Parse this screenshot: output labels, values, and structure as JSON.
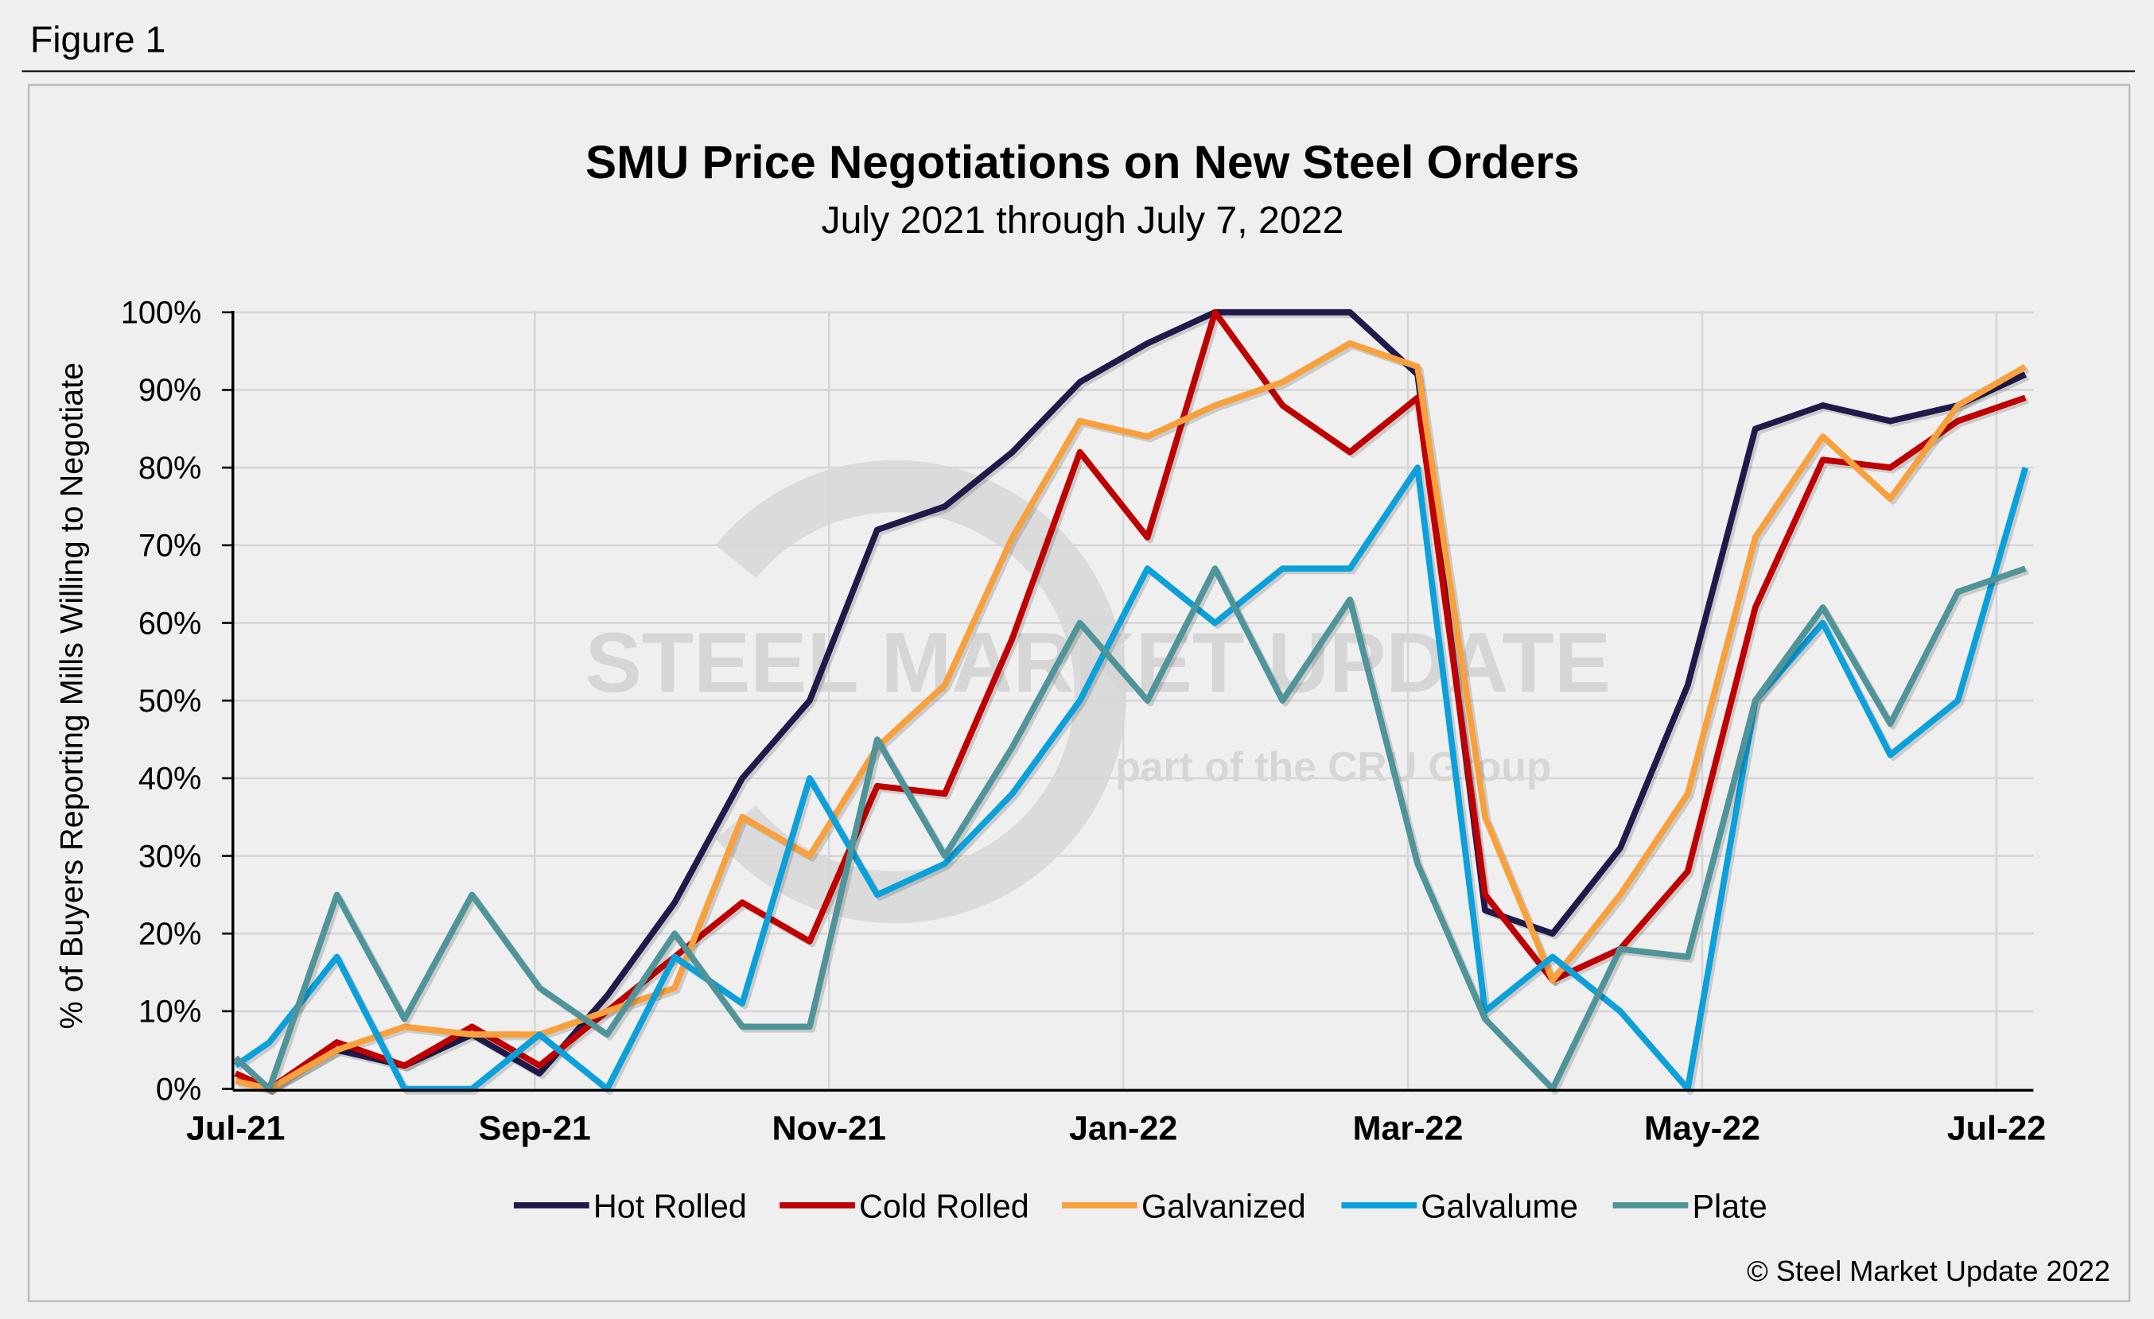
{
  "figure_label": "Figure 1",
  "copyright": "© Steel Market Update 2022",
  "watermark": {
    "brand": "STEEL MARKET UPDATE",
    "tagline": "part of the CRU Group"
  },
  "chart_data": {
    "type": "line",
    "title": "SMU Price Negotiations on New Steel Orders",
    "subtitle": "July 2021 through July 7, 2022",
    "ylabel": "% of Buyers Reporting Mills Willing to Negotiate",
    "xlabel": "",
    "ylim": [
      0,
      100
    ],
    "yticks": [
      "0%",
      "10%",
      "20%",
      "30%",
      "40%",
      "50%",
      "60%",
      "70%",
      "80%",
      "90%",
      "100%"
    ],
    "xlim": [
      "2021-07-01",
      "2022-07-10"
    ],
    "xticks": [
      {
        "date": "2021-07-01",
        "label": "Jul-21"
      },
      {
        "date": "2021-09-01",
        "label": "Sep-21"
      },
      {
        "date": "2021-11-01",
        "label": "Nov-21"
      },
      {
        "date": "2022-01-01",
        "label": "Jan-22"
      },
      {
        "date": "2022-03-01",
        "label": "Mar-22"
      },
      {
        "date": "2022-05-01",
        "label": "May-22"
      },
      {
        "date": "2022-07-01",
        "label": "Jul-22"
      }
    ],
    "grid": true,
    "legend_position": "bottom",
    "x": [
      "2021-07-01",
      "2021-07-08",
      "2021-07-22",
      "2021-08-05",
      "2021-08-19",
      "2021-09-02",
      "2021-09-16",
      "2021-09-30",
      "2021-10-14",
      "2021-10-28",
      "2021-11-11",
      "2021-11-25",
      "2021-12-09",
      "2021-12-23",
      "2022-01-06",
      "2022-01-20",
      "2022-02-03",
      "2022-02-17",
      "2022-03-03",
      "2022-03-17",
      "2022-03-31",
      "2022-04-14",
      "2022-04-28",
      "2022-05-12",
      "2022-05-26",
      "2022-06-09",
      "2022-06-23",
      "2022-07-07"
    ],
    "series": [
      {
        "name": "Hot Rolled",
        "color": "#1f1a4a",
        "values": [
          2,
          0,
          5,
          3,
          7,
          2,
          12,
          24,
          40,
          50,
          72,
          75,
          82,
          91,
          96,
          100,
          100,
          100,
          92,
          23,
          20,
          31,
          52,
          85,
          88,
          86,
          88,
          92
        ]
      },
      {
        "name": "Cold Rolled",
        "color": "#c00000",
        "values": [
          2,
          0,
          6,
          3,
          8,
          3,
          10,
          17,
          24,
          19,
          39,
          38,
          58,
          82,
          71,
          100,
          88,
          82,
          89,
          25,
          14,
          18,
          28,
          62,
          81,
          80,
          86,
          89
        ]
      },
      {
        "name": "Galvanized",
        "color": "#f8a03c",
        "values": [
          1,
          0,
          5,
          8,
          7,
          7,
          10,
          13,
          35,
          30,
          44,
          52,
          71,
          86,
          84,
          88,
          91,
          96,
          93,
          35,
          14,
          25,
          38,
          71,
          84,
          76,
          88,
          93
        ]
      },
      {
        "name": "Galvalume",
        "color": "#0aa0dc",
        "values": [
          3,
          6,
          17,
          0,
          0,
          7,
          0,
          17,
          11,
          40,
          25,
          29,
          38,
          50,
          67,
          60,
          67,
          67,
          80,
          10,
          17,
          10,
          0,
          50,
          60,
          43,
          50,
          80
        ]
      },
      {
        "name": "Plate",
        "color": "#4f9499",
        "values": [
          4,
          0,
          25,
          9,
          25,
          13,
          7,
          20,
          8,
          8,
          45,
          30,
          44,
          60,
          50,
          67,
          50,
          63,
          29,
          9,
          0,
          18,
          17,
          50,
          62,
          47,
          64,
          67
        ]
      }
    ]
  }
}
